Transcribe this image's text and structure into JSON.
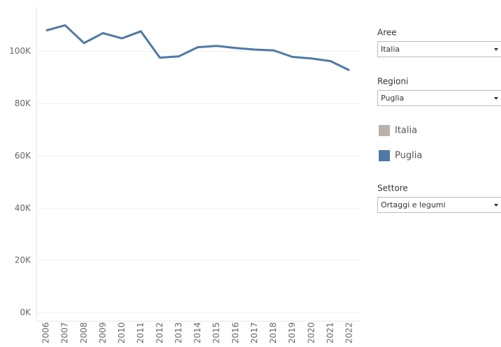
{
  "chart_data": {
    "type": "line",
    "categories": [
      "2006",
      "2007",
      "2008",
      "2009",
      "2010",
      "2011",
      "2012",
      "2013",
      "2014",
      "2015",
      "2016",
      "2017",
      "2018",
      "2019",
      "2020",
      "2021",
      "2022"
    ],
    "series": [
      {
        "name": "Italia",
        "color": "#bab0ac",
        "values": [
          null,
          null,
          null,
          null,
          null,
          null,
          null,
          null,
          null,
          null,
          null,
          null,
          null,
          null,
          null,
          null,
          null
        ]
      },
      {
        "name": "Puglia",
        "color": "#4e79a7",
        "values": [
          108000,
          110000,
          103200,
          107000,
          105000,
          107700,
          97600,
          98100,
          101600,
          102100,
          101300,
          100700,
          100400,
          97900,
          97300,
          96300,
          92800
        ]
      }
    ],
    "ylim": [
      0,
      117000
    ],
    "yticks": [
      {
        "value": 0,
        "label": "0K"
      },
      {
        "value": 20000,
        "label": "20K"
      },
      {
        "value": 40000,
        "label": "40K"
      },
      {
        "value": 60000,
        "label": "60K"
      },
      {
        "value": 80000,
        "label": "80K"
      },
      {
        "value": 100000,
        "label": "100K"
      }
    ],
    "grid": true
  },
  "filters": [
    {
      "label": "Aree",
      "value": "Italia"
    },
    {
      "label": "Regioni",
      "value": "Puglia"
    },
    {
      "label": "Settore",
      "value": "Ortaggi e legumi"
    }
  ]
}
